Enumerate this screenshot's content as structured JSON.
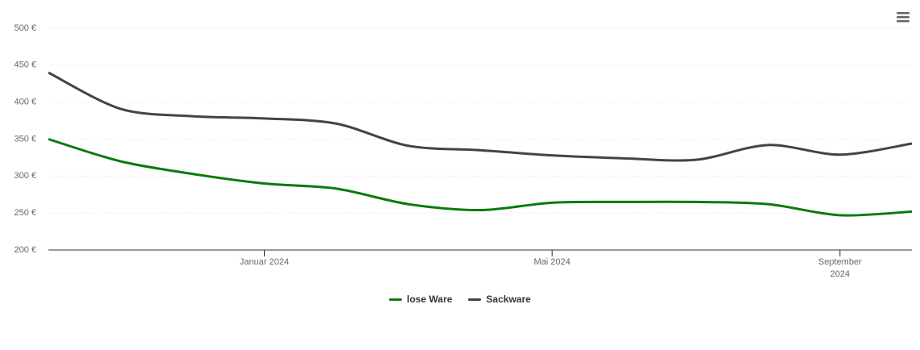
{
  "chart_data": {
    "type": "line",
    "x": [
      "2023-10",
      "2023-11",
      "2023-12",
      "2024-01",
      "2024-02",
      "2024-03",
      "2024-04",
      "2024-05",
      "2024-06",
      "2024-07",
      "2024-08",
      "2024-09",
      "2024-10"
    ],
    "series": [
      {
        "name": "lose Ware",
        "color": "#0b7b0b",
        "values": [
          350,
          320,
          303,
          290,
          283,
          262,
          254,
          264,
          265,
          265,
          262,
          247,
          252
        ]
      },
      {
        "name": "Sackware",
        "color": "#434348",
        "values": [
          440,
          391,
          381,
          378,
          371,
          341,
          335,
          328,
          324,
          322,
          342,
          329,
          344
        ]
      }
    ],
    "xlim": [
      "2023-10",
      "2024-10"
    ],
    "xticks": [
      {
        "value": "2024-01",
        "label": "Januar 2024"
      },
      {
        "value": "2024-05",
        "label": "Mai 2024"
      },
      {
        "value": "2024-09",
        "label": "September 2024"
      }
    ],
    "ylim": [
      200,
      500
    ],
    "yticks": [
      {
        "value": 200,
        "label": "200 €"
      },
      {
        "value": 250,
        "label": "250 €"
      },
      {
        "value": 300,
        "label": "300 €"
      },
      {
        "value": 350,
        "label": "350 €"
      },
      {
        "value": 400,
        "label": "400 €"
      },
      {
        "value": 450,
        "label": "450 €"
      },
      {
        "value": 500,
        "label": "500 €"
      }
    ],
    "grid": true,
    "legend": "bottom"
  }
}
